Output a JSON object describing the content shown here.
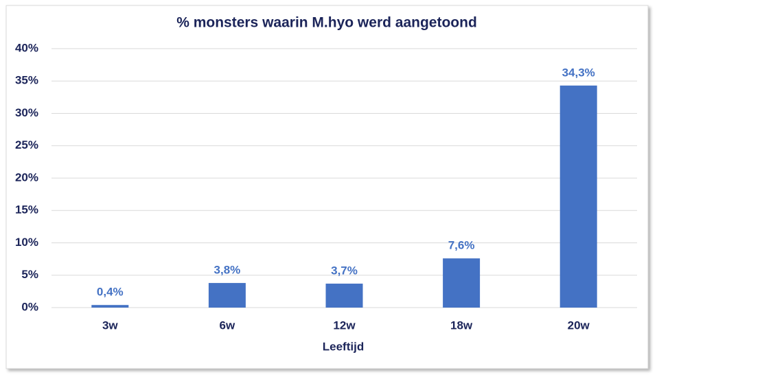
{
  "chart_data": {
    "type": "bar",
    "title": "% monsters waarin M.hyo werd aangetoond",
    "x_label": "Leeftijd",
    "categories": [
      "3w",
      "6w",
      "12w",
      "18w",
      "20w"
    ],
    "values": [
      0.4,
      3.8,
      3.7,
      7.6,
      34.3
    ],
    "value_labels": [
      "0,4%",
      "3,8%",
      "3,7%",
      "7,6%",
      "34,3%"
    ],
    "color": "#4472c4",
    "ylim": [
      0,
      40
    ],
    "yticks": [
      {
        "value": 0,
        "label": "0%"
      },
      {
        "value": 5,
        "label": "5%"
      },
      {
        "value": 10,
        "label": "10%"
      },
      {
        "value": 15,
        "label": "15%"
      },
      {
        "value": 20,
        "label": "20%"
      },
      {
        "value": 25,
        "label": "25%"
      },
      {
        "value": 30,
        "label": "30%"
      },
      {
        "value": 35,
        "label": "35%"
      },
      {
        "value": 40,
        "label": "40%"
      }
    ],
    "grid": true
  }
}
